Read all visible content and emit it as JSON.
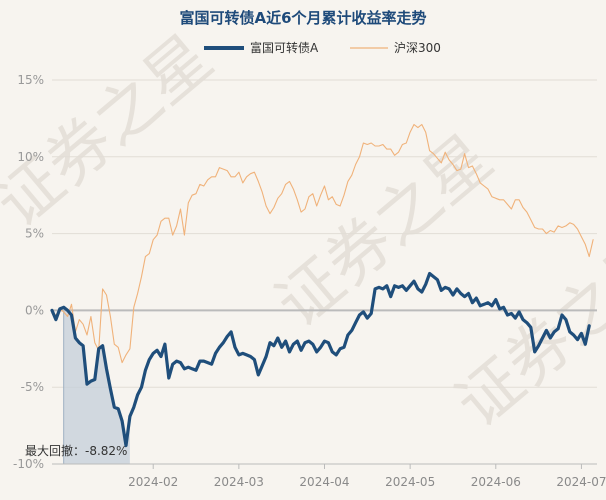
{
  "chart_data": {
    "type": "line",
    "title": "富国可转债A近6个月累计收益率走势",
    "watermark": "证券之星",
    "y_axis": {
      "ticks": [
        "15%",
        "10%",
        "5%",
        "0%",
        "-5%",
        "-10%"
      ],
      "tick_values": [
        15,
        10,
        5,
        0,
        -5,
        -10
      ],
      "ylim": [
        -10,
        15
      ]
    },
    "x_axis": {
      "ticks": [
        "2024-02",
        "2024-03",
        "2024-04",
        "2024-05",
        "2024-06",
        "2024-07"
      ],
      "tick_positions": [
        26,
        48,
        70,
        92,
        114,
        136
      ],
      "xlim": [
        0,
        140
      ]
    },
    "max_drawdown_label": "最大回撤：-8.82%",
    "max_drawdown_range": [
      3,
      20
    ],
    "colors": {
      "fund": "#1f4e7b",
      "index": "#f0b27a",
      "drawdown_fill": "#c4cfd9",
      "zero_line": "#bbbbbb"
    },
    "series": [
      {
        "name": "富国可转债A",
        "color": "#1f4e7b",
        "values": [
          0.0,
          -0.6,
          0.1,
          0.2,
          0.0,
          -0.3,
          -1.8,
          -2.1,
          -2.3,
          -4.8,
          -4.6,
          -4.5,
          -2.5,
          -2.3,
          -3.8,
          -5.1,
          -6.3,
          -6.4,
          -7.2,
          -8.8,
          -6.9,
          -6.3,
          -5.5,
          -5.0,
          -3.9,
          -3.2,
          -2.8,
          -2.6,
          -3.0,
          -2.2,
          -4.4,
          -3.5,
          -3.3,
          -3.4,
          -3.8,
          -3.7,
          -3.8,
          -3.9,
          -3.3,
          -3.3,
          -3.4,
          -3.5,
          -2.8,
          -2.4,
          -2.1,
          -1.7,
          -1.4,
          -2.4,
          -2.9,
          -2.8,
          -2.9,
          -3.0,
          -3.2,
          -4.2,
          -3.6,
          -3.0,
          -2.1,
          -2.3,
          -1.8,
          -2.4,
          -2.0,
          -2.7,
          -2.2,
          -2.0,
          -2.6,
          -2.1,
          -2.0,
          -2.2,
          -2.7,
          -2.4,
          -2.0,
          -2.1,
          -2.7,
          -2.9,
          -2.5,
          -2.4,
          -1.6,
          -1.3,
          -0.8,
          -0.3,
          -0.1,
          -0.5,
          -0.2,
          1.4,
          1.5,
          1.4,
          1.6,
          0.9,
          1.6,
          1.5,
          1.6,
          1.3,
          1.6,
          1.9,
          1.4,
          1.2,
          1.7,
          2.4,
          2.2,
          2.0,
          1.3,
          1.5,
          1.4,
          1.0,
          1.4,
          1.1,
          0.9,
          1.1,
          0.5,
          0.8,
          0.3,
          0.4,
          0.5,
          0.3,
          0.7,
          0.1,
          0.2,
          -0.3,
          -0.2,
          -0.5,
          -0.1,
          -0.6,
          -0.8,
          -1.1,
          -2.7,
          -2.3,
          -1.8,
          -1.3,
          -1.8,
          -1.4,
          -1.2,
          -0.3,
          -0.6,
          -1.4,
          -1.6,
          -1.9,
          -1.5,
          -2.2,
          -1.0
        ]
      },
      {
        "name": "沪深300",
        "color": "#f0b27a",
        "values": [
          -0.2,
          -0.3,
          0.1,
          -0.1,
          -0.4,
          0.4,
          -1.4,
          -0.6,
          -0.9,
          -1.6,
          -0.4,
          -2.1,
          -2.6,
          1.4,
          1.0,
          -0.4,
          -2.2,
          -2.4,
          -3.4,
          -2.9,
          -2.5,
          0.2,
          1.1,
          2.2,
          3.5,
          3.7,
          4.6,
          4.9,
          5.8,
          6.0,
          6.0,
          4.9,
          5.5,
          6.6,
          4.9,
          7.0,
          7.5,
          7.6,
          8.2,
          8.1,
          8.5,
          8.7,
          8.7,
          9.3,
          9.2,
          9.1,
          8.7,
          8.7,
          9.0,
          8.3,
          8.7,
          8.9,
          9.0,
          8.4,
          7.7,
          6.8,
          6.3,
          6.7,
          7.3,
          7.6,
          8.2,
          8.4,
          7.9,
          7.2,
          6.4,
          6.6,
          7.4,
          7.6,
          6.8,
          7.5,
          8.1,
          7.2,
          7.4,
          6.9,
          6.8,
          7.5,
          8.4,
          8.8,
          9.5,
          10.0,
          10.9,
          10.8,
          10.9,
          10.7,
          10.7,
          10.8,
          10.5,
          10.5,
          10.1,
          10.3,
          10.8,
          10.9,
          11.6,
          12.1,
          11.9,
          12.1,
          11.6,
          10.4,
          10.2,
          9.9,
          9.6,
          10.3,
          9.8,
          9.5,
          9.1,
          9.2,
          10.2,
          9.3,
          9.4,
          8.9,
          8.3,
          8.1,
          7.9,
          7.4,
          7.3,
          7.2,
          7.2,
          6.9,
          6.6,
          7.2,
          7.2,
          6.7,
          6.4,
          5.9,
          5.4,
          5.3,
          5.3,
          5.0,
          5.2,
          5.1,
          5.5,
          5.4,
          5.5,
          5.7,
          5.6,
          5.3,
          4.8,
          4.3,
          3.5,
          4.6
        ]
      }
    ]
  }
}
